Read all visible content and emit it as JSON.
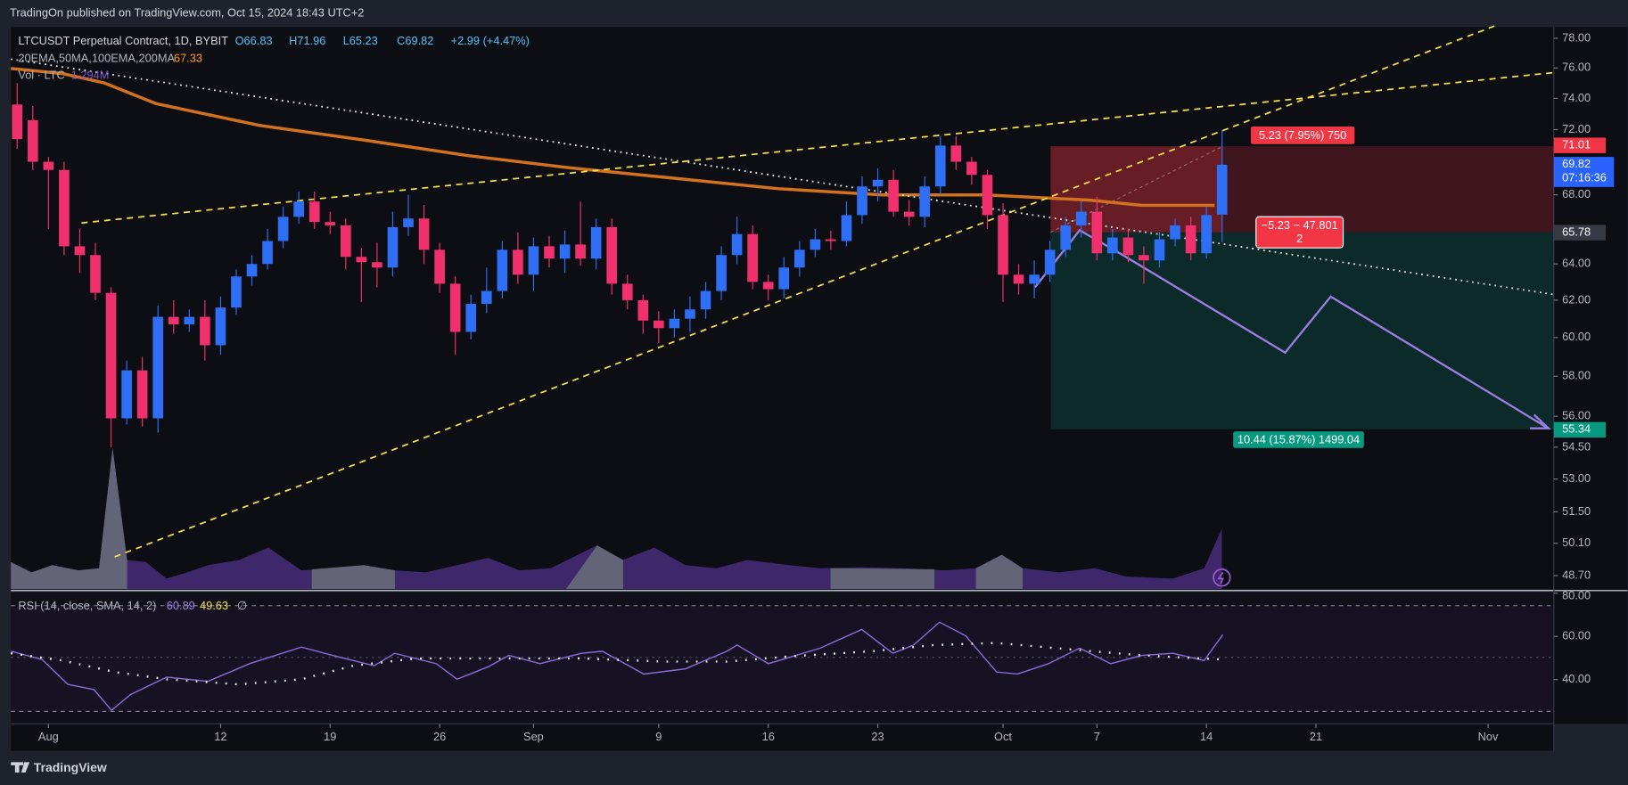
{
  "header": {
    "publisher": "TradingOn published on TradingView.com, Oct 15, 2024 18:43 UTC+2",
    "brand": "TradingView"
  },
  "legend": {
    "symbol": "LTCUSDT Perpetual Contract, 1D, BYBIT",
    "ohlc": [
      "O66.83",
      "H71.96",
      "L65.23",
      "C69.82",
      "+2.99 (+4.47%)"
    ],
    "ma_name": "20EMA,50MA,100EMA,200MA",
    "ma_value": "67.33",
    "vol_name": "Vol · LTC",
    "vol_value": "1.294M",
    "rsi_name": "RSI (14, close, SMA, 14, 2)",
    "rsi_value": "60.89",
    "rsi_ma_value": "49.63",
    "rsi_extra": "∅"
  },
  "position_tool": {
    "upper_label": "5.23 (7.95%) 750",
    "middle_label": [
      "−5.23 ~ 47.801",
      "2"
    ],
    "lower_label": "10.44 (15.87%) 1499.04"
  },
  "chart_data": {
    "type": "candlestick",
    "log_scale": true,
    "up_color": "#2f6ff5",
    "down_color": "#f0316d",
    "xlim": [
      -0.4,
      98.2
    ],
    "xticks": [
      {
        "value": 2,
        "label": "Aug"
      },
      {
        "value": 13,
        "label": "12"
      },
      {
        "value": 20,
        "label": "19"
      },
      {
        "value": 27,
        "label": "26"
      },
      {
        "value": 33,
        "label": "Sep"
      },
      {
        "value": 41,
        "label": "9"
      },
      {
        "value": 48,
        "label": "16"
      },
      {
        "value": 55,
        "label": "23"
      },
      {
        "value": 63,
        "label": "Oct"
      },
      {
        "value": 69,
        "label": "7"
      },
      {
        "value": 76,
        "label": "14"
      },
      {
        "value": 83,
        "label": "21"
      },
      {
        "value": 94,
        "label": "Nov"
      }
    ],
    "ylim": [
      48.13,
      78.78
    ],
    "yticks": [
      {
        "value": 78,
        "label": "78.00"
      },
      {
        "value": 76,
        "label": "76.00"
      },
      {
        "value": 74,
        "label": "74.00"
      },
      {
        "value": 72,
        "label": "72.00"
      },
      {
        "value": 68,
        "label": "68.00"
      },
      {
        "value": 64,
        "label": "64.00"
      },
      {
        "value": 62,
        "label": "62.00"
      },
      {
        "value": 60,
        "label": "60.00"
      },
      {
        "value": 58,
        "label": "58.00"
      },
      {
        "value": 56,
        "label": "56.00"
      },
      {
        "value": 54.5,
        "label": "54.50"
      },
      {
        "value": 53,
        "label": "53.00"
      },
      {
        "value": 51.5,
        "label": "51.50"
      },
      {
        "value": 50.1,
        "label": "50.10"
      },
      {
        "value": 48.7,
        "label": "48.70"
      }
    ],
    "price_labels": [
      {
        "value": 71.01,
        "label": "71.01",
        "color": "#f23645"
      },
      {
        "value": 69.82,
        "label": "69.82",
        "sublabel": "07:16:36",
        "color": "#2962ff"
      },
      {
        "value": 65.78,
        "label": "65.78",
        "color": "#363a45"
      },
      {
        "value": 55.34,
        "label": "55.34",
        "color": "#089981"
      }
    ],
    "open": [
      73.6,
      72.6,
      70,
      69.5,
      65,
      64.5,
      62.4,
      55.9,
      58.3,
      55.9,
      61.1,
      60.7,
      61.1,
      59.6,
      61.6,
      63.3,
      64,
      65.3,
      66.7,
      67.6,
      66.4,
      66.2,
      64.4,
      64.1,
      63.8,
      66.1,
      66.6,
      64.8,
      62.9,
      60.3,
      61.8,
      62.5,
      64.8,
      63.4,
      65,
      64.3,
      65.1,
      64.3,
      66.1,
      62.9,
      62,
      60.9,
      60.5,
      61,
      61.5,
      62.5,
      64.5,
      65.7,
      63,
      62.6,
      63.8,
      64.8,
      65.4,
      65.3,
      66.8,
      68.5,
      68.9,
      67,
      66.7,
      68.5,
      71,
      70,
      69.2,
      66.8,
      63.4,
      62.9,
      63.4,
      64.8,
      66.2,
      67,
      64.6,
      65.5,
      64.5,
      64.2,
      65.4,
      66.2,
      64.6,
      66.83
    ],
    "high": [
      75,
      73.5,
      70.3,
      70,
      66,
      65.2,
      62.7,
      58.8,
      59,
      61.7,
      62,
      61.5,
      62,
      62.2,
      63.7,
      64.5,
      66,
      67.3,
      68.2,
      68.2,
      67,
      66.6,
      64.9,
      65.2,
      67,
      68,
      67.4,
      65.2,
      63.3,
      62.3,
      63.8,
      65.3,
      65.8,
      65.5,
      65.6,
      65.9,
      67.6,
      66.6,
      66.6,
      63.4,
      62.3,
      61.4,
      61.5,
      62.2,
      63,
      65,
      66.7,
      66.2,
      63.4,
      64.4,
      65.3,
      66,
      65.9,
      67.6,
      69.1,
      69.6,
      69.5,
      67.7,
      69.1,
      71.6,
      71.6,
      70.3,
      69.5,
      67.5,
      64,
      64.2,
      65.3,
      66.7,
      67.6,
      67.9,
      66,
      66,
      65,
      65.8,
      66.6,
      66.7,
      67.3,
      71.96
    ],
    "low": [
      70.8,
      69.5,
      66,
      64.5,
      63.5,
      62,
      54.5,
      55.6,
      55.5,
      55.2,
      60.2,
      60.3,
      58.8,
      59.1,
      61.2,
      62.8,
      63.7,
      64.9,
      66.3,
      66,
      65.7,
      63.7,
      61.9,
      62.7,
      63.3,
      65.6,
      64,
      62.4,
      59.1,
      59.9,
      61.3,
      62.1,
      62.9,
      62.5,
      63.8,
      63.5,
      63.9,
      63.7,
      62.3,
      61.5,
      60.2,
      59.7,
      60,
      60.3,
      61,
      62,
      64,
      62.6,
      62,
      62.1,
      63.3,
      64.4,
      64.8,
      65,
      66.3,
      67.6,
      66.7,
      66.2,
      66.1,
      68,
      69.5,
      68.6,
      66,
      61.9,
      62.3,
      62.1,
      63,
      64.4,
      65.5,
      64.2,
      64.2,
      64.1,
      62.9,
      63.8,
      65,
      64.2,
      64.3,
      65.23
    ],
    "close": [
      71.4,
      70,
      69.5,
      65,
      64.5,
      62.4,
      55.9,
      58.3,
      55.9,
      61.1,
      60.7,
      61.1,
      59.6,
      61.6,
      63.3,
      64,
      65.3,
      66.7,
      67.6,
      66.4,
      66.2,
      64.4,
      64.1,
      63.8,
      66.1,
      66.6,
      64.8,
      62.9,
      60.3,
      61.8,
      62.5,
      64.8,
      63.4,
      65,
      64.3,
      65.1,
      64.3,
      66.1,
      62.9,
      62,
      60.9,
      60.5,
      61,
      61.5,
      62.5,
      64.5,
      65.7,
      63,
      62.6,
      63.8,
      64.8,
      65.4,
      65.3,
      66.8,
      68.5,
      68.9,
      67,
      66.7,
      68.5,
      71,
      70,
      69.2,
      66.8,
      63.4,
      62.9,
      63.4,
      64.8,
      66.2,
      67,
      64.6,
      65.5,
      64.5,
      64.2,
      65.4,
      66.2,
      64.6,
      66.8,
      69.82
    ]
  },
  "rsi": {
    "ylim": [
      19.5,
      80.5
    ],
    "yticks": [
      {
        "value": 80,
        "label": "80.00"
      },
      {
        "value": 60,
        "label": "60.00"
      },
      {
        "value": 40,
        "label": "40.00"
      }
    ]
  }
}
